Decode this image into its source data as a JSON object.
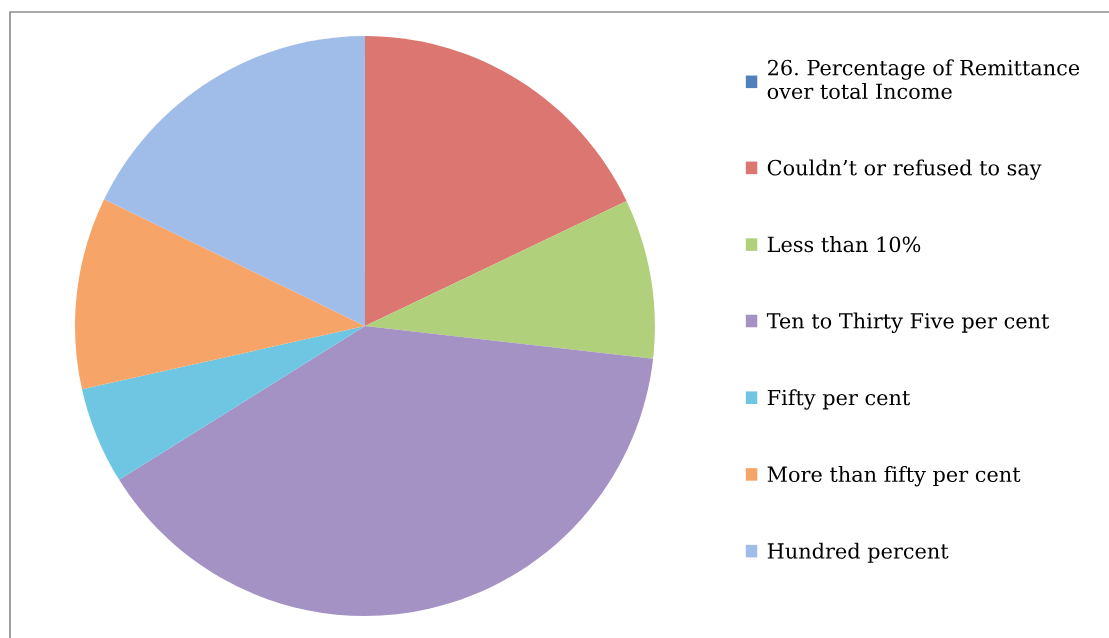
{
  "chart_data": {
    "type": "pie",
    "categories": [
      "26. Percentage of Remittance over total Income",
      "Couldn’t or refused to say",
      "Less than 10%",
      "Ten to Thirty Five per cent",
      "Fifty per cent",
      "More than fifty per cent",
      "Hundred percent"
    ],
    "values": [
      0,
      17.9,
      8.9,
      39.3,
      5.4,
      10.7,
      17.8
    ],
    "colors": [
      "#4f81bd",
      "#dc7671",
      "#b1d07c",
      "#a592c4",
      "#6ec6e2",
      "#f7a468",
      "#a0bce9"
    ],
    "legend": "right"
  }
}
